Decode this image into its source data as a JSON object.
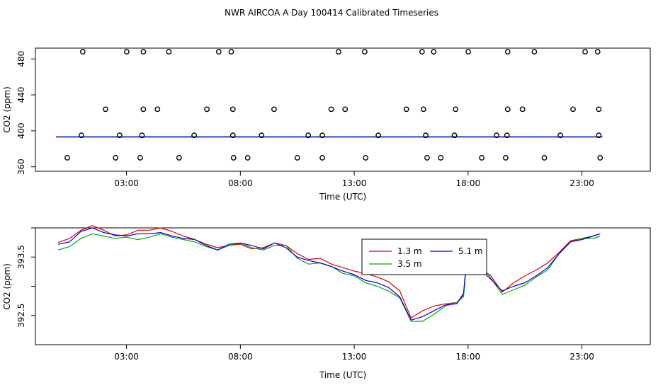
{
  "page_title": "NWR AIRCOA A  Day 100414  Calibrated Timeseries",
  "chart_data": [
    {
      "type": "scatter",
      "title": "",
      "xlabel": "Time (UTC)",
      "ylabel": "CO2 (ppm)",
      "xlim": [
        -1.0,
        26.0
      ],
      "ylim": [
        355,
        492
      ],
      "xticks": [
        3,
        8,
        13,
        18,
        23
      ],
      "xtick_labels": [
        "03:00",
        "08:00",
        "13:00",
        "18:00",
        "23:00"
      ],
      "yticks": [
        360,
        400,
        440,
        480
      ],
      "ytick_labels": [
        "360",
        "400",
        "440",
        "480"
      ],
      "grid": false,
      "colors": {
        "points": "#000000",
        "line_red": "#dd0000",
        "line_green": "#00aa00",
        "line_blue": "#0000dd"
      },
      "points_x": [
        1.08,
        3.01,
        3.74,
        4.86,
        7.05,
        7.6,
        12.31,
        13.46,
        15.98,
        16.49,
        18.01,
        19.74,
        20.91,
        23.14,
        23.69,
        2.08,
        3.74,
        4.36,
        6.53,
        7.67,
        9.48,
        11.99,
        12.6,
        15.29,
        16.04,
        17.45,
        19.74,
        20.39,
        22.61,
        23.74,
        1.02,
        2.7,
        3.68,
        5.97,
        7.67,
        8.93,
        10.98,
        11.6,
        14.06,
        16.14,
        17.4,
        19.25,
        19.71,
        22.05,
        23.74,
        0.4,
        2.52,
        3.6,
        5.31,
        7.7,
        8.32,
        10.5,
        11.6,
        13.5,
        16.2,
        16.8,
        18.6,
        19.65,
        21.35,
        23.8
      ],
      "points_y": [
        488,
        488,
        488,
        488,
        488,
        488,
        488,
        488,
        488,
        488,
        488,
        488,
        488,
        488,
        488,
        424,
        424,
        424,
        424,
        424,
        424,
        424,
        424,
        424,
        424,
        424,
        424,
        424,
        424,
        424,
        395,
        395,
        395,
        395,
        395,
        395,
        395,
        395,
        395,
        395,
        395,
        395,
        395,
        395,
        395,
        370,
        370,
        370,
        370,
        370,
        370,
        370,
        370,
        370,
        370,
        370,
        370,
        370,
        370,
        370
      ],
      "line_y": 393.4
    },
    {
      "type": "line",
      "title": "",
      "xlabel": "Time (UTC)",
      "ylabel": "CO2 (ppm)",
      "xlim": [
        -1.0,
        26.0
      ],
      "ylim": [
        392.0,
        394.0
      ],
      "xticks": [
        3,
        8,
        13,
        18,
        23
      ],
      "xtick_labels": [
        "03:00",
        "08:00",
        "13:00",
        "18:00",
        "23:00"
      ],
      "yticks": [
        392.5,
        393.0,
        393.5,
        394.0
      ],
      "ytick_labels": [
        "392.5",
        "",
        "393.5",
        ""
      ],
      "grid": false,
      "legend": "top-center",
      "x": [
        0.0,
        0.5,
        1.0,
        1.5,
        2.0,
        2.5,
        3.0,
        3.5,
        4.0,
        4.5,
        5.0,
        5.5,
        6.0,
        6.5,
        7.0,
        7.5,
        8.0,
        8.5,
        9.0,
        9.5,
        10.0,
        10.5,
        11.0,
        11.5,
        12.0,
        12.5,
        13.0,
        13.5,
        14.0,
        14.5,
        15.0,
        15.5,
        16.0,
        16.5,
        17.0,
        17.5,
        17.8,
        18.0,
        18.5,
        19.0,
        19.5,
        20.0,
        20.5,
        21.0,
        21.5,
        22.0,
        22.5,
        23.0,
        23.5,
        23.8
      ],
      "series": [
        {
          "name": "1.3 m",
          "color": "#dd0000",
          "values": [
            393.75,
            393.82,
            393.96,
            394.04,
            393.96,
            393.86,
            393.88,
            393.96,
            393.96,
            394.0,
            393.94,
            393.86,
            393.8,
            393.72,
            393.66,
            393.7,
            393.72,
            393.64,
            393.66,
            393.74,
            393.7,
            393.56,
            393.46,
            393.48,
            393.38,
            393.32,
            393.26,
            393.22,
            393.16,
            393.08,
            392.92,
            392.46,
            392.58,
            392.66,
            392.7,
            392.72,
            392.85,
            393.73,
            393.32,
            393.18,
            392.9,
            393.06,
            393.18,
            393.28,
            393.4,
            393.58,
            393.78,
            393.82,
            393.86,
            393.9
          ]
        },
        {
          "name": "3.5 m",
          "color": "#00aa00",
          "values": [
            393.62,
            393.68,
            393.82,
            393.9,
            393.86,
            393.82,
            393.84,
            393.8,
            393.84,
            393.9,
            393.84,
            393.8,
            393.76,
            393.68,
            393.62,
            393.7,
            393.74,
            393.66,
            393.62,
            393.7,
            393.7,
            393.48,
            393.38,
            393.4,
            393.34,
            393.22,
            393.18,
            393.06,
            393.0,
            392.92,
            392.8,
            392.4,
            392.4,
            392.52,
            392.66,
            392.72,
            392.82,
            393.7,
            393.38,
            393.14,
            392.86,
            392.94,
            393.02,
            393.16,
            393.28,
            393.56,
            393.76,
            393.82,
            393.82,
            393.86
          ]
        },
        {
          "name": "5.1 m",
          "color": "#0000dd",
          "values": [
            393.72,
            393.76,
            393.94,
            394.0,
            393.92,
            393.88,
            393.86,
            393.9,
            393.9,
            393.92,
            393.86,
            393.82,
            393.8,
            393.7,
            393.62,
            393.72,
            393.74,
            393.7,
            393.64,
            393.74,
            393.66,
            393.5,
            393.44,
            393.4,
            393.34,
            393.26,
            393.2,
            393.1,
            393.06,
            392.98,
            392.82,
            392.42,
            392.48,
            392.58,
            392.68,
            392.7,
            392.88,
            393.72,
            393.3,
            393.12,
            392.92,
            393.0,
            393.06,
            393.18,
            393.32,
            393.56,
            393.76,
            393.8,
            393.86,
            393.9
          ]
        }
      ]
    }
  ]
}
